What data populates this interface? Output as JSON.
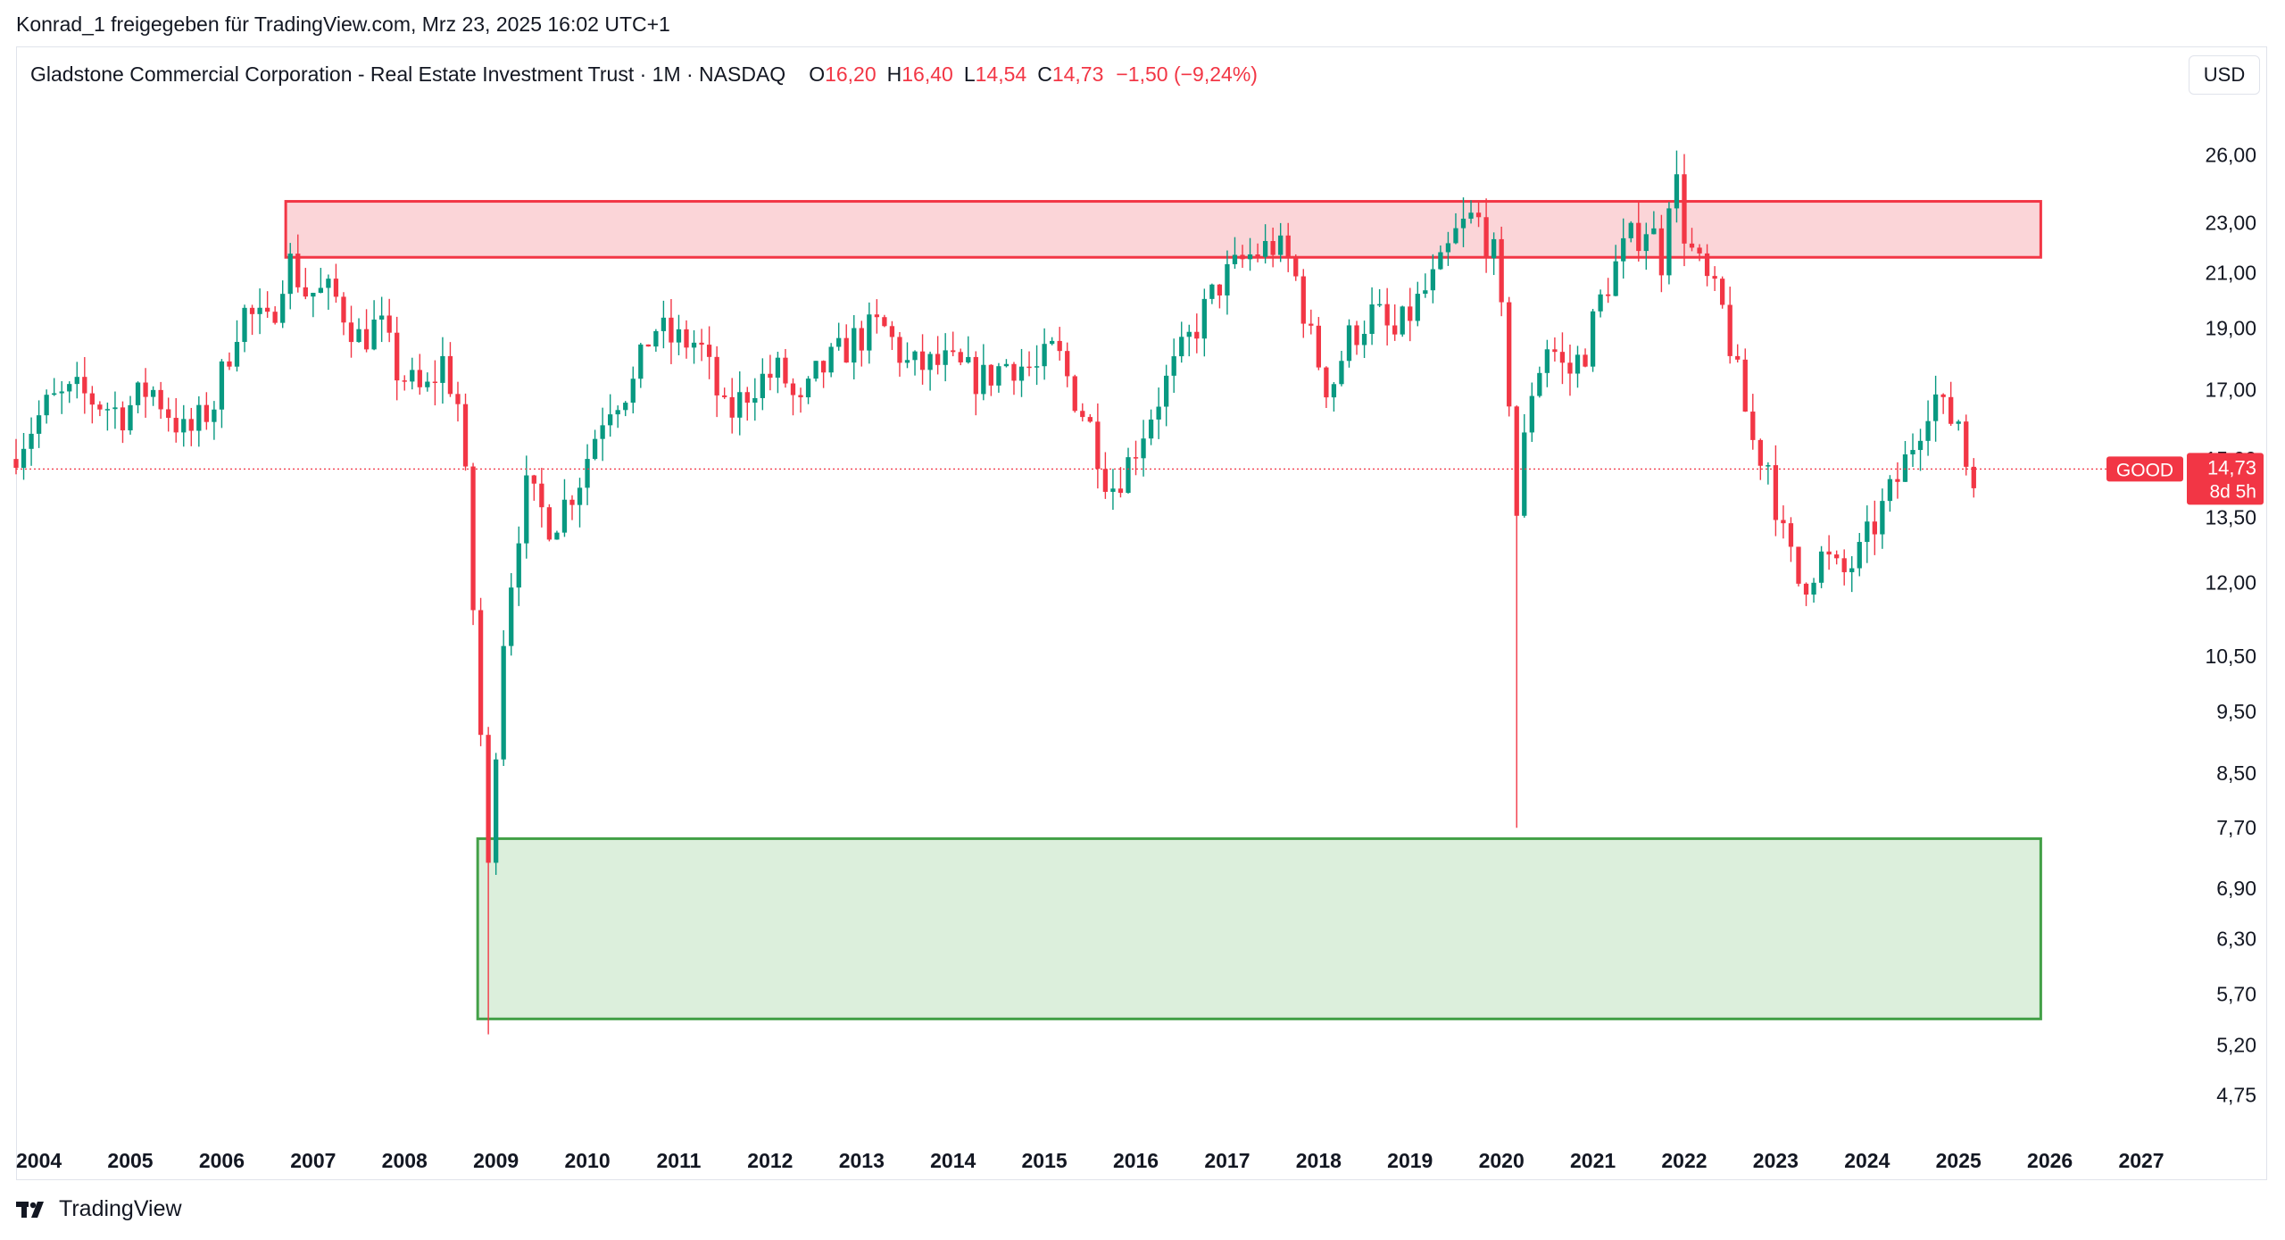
{
  "header": {
    "publisher": "Konrad_1 freigegeben für TradingView.com, Mrz 23, 2025 16:02 UTC+1"
  },
  "legend": {
    "symbol": "Gladstone Commercial Corporation - Real Estate Investment Trust · 1M · NASDAQ",
    "o_label": "O",
    "o_value": "16,20",
    "h_label": "H",
    "h_value": "16,40",
    "l_label": "L",
    "l_value": "14,54",
    "c_label": "C",
    "c_value": "14,73",
    "change": "−1,50 (−9,24%)"
  },
  "currency_button": "USD",
  "price_tag": {
    "ticker": "GOOD",
    "price": "14,73",
    "countdown": "8d 5h"
  },
  "footer": {
    "brand": "TradingView"
  },
  "colors": {
    "up": "#089981",
    "down": "#f23645",
    "resistance_fill": "#fbd5d8",
    "resistance_border": "#f23645",
    "support_fill": "#dcefdc",
    "support_border": "#43a047",
    "price_line": "#f23645"
  },
  "chart_data": {
    "type": "candlestick",
    "interval": "1M",
    "y_scale": "log",
    "ylim": [
      4.5,
      27.0
    ],
    "y_ticks": [
      "26,00",
      "23,00",
      "21,00",
      "19,00",
      "17,00",
      "15,00",
      "13,50",
      "12,00",
      "10,50",
      "9,50",
      "8,50",
      "7,70",
      "6,90",
      "6,30",
      "5,70",
      "5,20",
      "4,75"
    ],
    "y_tick_values": [
      26,
      23,
      21,
      19,
      17,
      15,
      13.5,
      12,
      10.5,
      9.5,
      8.5,
      7.7,
      6.9,
      6.3,
      5.7,
      5.2,
      4.75
    ],
    "x_ticks": [
      "2004",
      "2005",
      "2006",
      "2007",
      "2008",
      "2009",
      "2010",
      "2011",
      "2012",
      "2013",
      "2014",
      "2015",
      "2016",
      "2017",
      "2018",
      "2019",
      "2020",
      "2021",
      "2022",
      "2023",
      "2024",
      "2025",
      "2026",
      "2027"
    ],
    "x_range": [
      2003.75,
      2027.4
    ],
    "last_price": 14.73,
    "zones": [
      {
        "name": "resistance",
        "from": 2006.7,
        "to": 2025.9,
        "low": 21.6,
        "high": 23.9
      },
      {
        "name": "support",
        "from": 2008.8,
        "to": 2025.9,
        "low": 5.45,
        "high": 7.55
      }
    ],
    "anchors": [
      [
        2003.75,
        15.0
      ],
      [
        2004.2,
        16.6
      ],
      [
        2004.5,
        16.9
      ],
      [
        2005.0,
        16.3
      ],
      [
        2005.3,
        17.1
      ],
      [
        2005.7,
        15.6
      ],
      [
        2006.0,
        16.6
      ],
      [
        2006.3,
        19.6
      ],
      [
        2006.6,
        19.0
      ],
      [
        2006.8,
        21.6
      ],
      [
        2007.0,
        20.3
      ],
      [
        2007.3,
        20.2
      ],
      [
        2007.6,
        18.6
      ],
      [
        2007.8,
        19.2
      ],
      [
        2008.0,
        17.6
      ],
      [
        2008.3,
        16.8
      ],
      [
        2008.5,
        17.9
      ],
      [
        2008.7,
        16.3
      ],
      [
        2008.8,
        12.4
      ],
      [
        2008.92,
        9.0
      ],
      [
        2009.0,
        7.1
      ],
      [
        2009.17,
        11.0
      ],
      [
        2009.4,
        14.2
      ],
      [
        2009.7,
        13.3
      ],
      [
        2010.0,
        14.5
      ],
      [
        2010.3,
        16.6
      ],
      [
        2010.6,
        17.2
      ],
      [
        2010.8,
        19.1
      ],
      [
        2011.0,
        18.6
      ],
      [
        2011.3,
        18.5
      ],
      [
        2011.6,
        16.1
      ],
      [
        2011.9,
        17.2
      ],
      [
        2012.2,
        17.6
      ],
      [
        2012.4,
        16.3
      ],
      [
        2012.6,
        17.5
      ],
      [
        2012.8,
        18.0
      ],
      [
        2013.0,
        18.6
      ],
      [
        2013.3,
        19.1
      ],
      [
        2013.6,
        17.7
      ],
      [
        2014.0,
        17.8
      ],
      [
        2014.4,
        17.3
      ],
      [
        2014.7,
        17.9
      ],
      [
        2015.0,
        17.6
      ],
      [
        2015.2,
        18.3
      ],
      [
        2015.4,
        16.9
      ],
      [
        2015.6,
        15.8
      ],
      [
        2015.8,
        14.2
      ],
      [
        2016.0,
        14.9
      ],
      [
        2016.3,
        16.6
      ],
      [
        2016.6,
        18.2
      ],
      [
        2016.8,
        19.4
      ],
      [
        2017.0,
        20.6
      ],
      [
        2017.3,
        21.6
      ],
      [
        2017.6,
        22.1
      ],
      [
        2017.8,
        21.2
      ],
      [
        2018.0,
        18.6
      ],
      [
        2018.2,
        16.9
      ],
      [
        2018.4,
        18.6
      ],
      [
        2018.7,
        19.6
      ],
      [
        2018.9,
        18.6
      ],
      [
        2019.1,
        19.6
      ],
      [
        2019.4,
        21.0
      ],
      [
        2019.6,
        22.6
      ],
      [
        2019.8,
        23.3
      ],
      [
        2020.0,
        21.6
      ],
      [
        2020.15,
        17.5
      ],
      [
        2020.25,
        13.6
      ],
      [
        2020.4,
        16.9
      ],
      [
        2020.6,
        18.6
      ],
      [
        2020.8,
        17.4
      ],
      [
        2021.0,
        18.3
      ],
      [
        2021.2,
        20.3
      ],
      [
        2021.45,
        22.1
      ],
      [
        2021.7,
        23.0
      ],
      [
        2021.85,
        21.3
      ],
      [
        2021.95,
        25.8
      ],
      [
        2022.1,
        22.3
      ],
      [
        2022.3,
        20.8
      ],
      [
        2022.5,
        19.6
      ],
      [
        2022.7,
        16.9
      ],
      [
        2022.85,
        15.3
      ],
      [
        2023.0,
        14.9
      ],
      [
        2023.15,
        13.1
      ],
      [
        2023.35,
        11.9
      ],
      [
        2023.6,
        12.6
      ],
      [
        2023.8,
        12.1
      ],
      [
        2024.0,
        12.6
      ],
      [
        2024.25,
        13.7
      ],
      [
        2024.45,
        14.6
      ],
      [
        2024.65,
        15.9
      ],
      [
        2024.8,
        17.0
      ],
      [
        2024.95,
        16.1
      ],
      [
        2025.08,
        16.2
      ],
      [
        2025.18,
        14.73
      ]
    ],
    "wick_events": [
      {
        "date": 2020.17,
        "low": 7.7
      },
      {
        "date": 2008.95,
        "low": 5.3
      },
      {
        "date": 2021.95,
        "high": 26.2
      }
    ]
  }
}
